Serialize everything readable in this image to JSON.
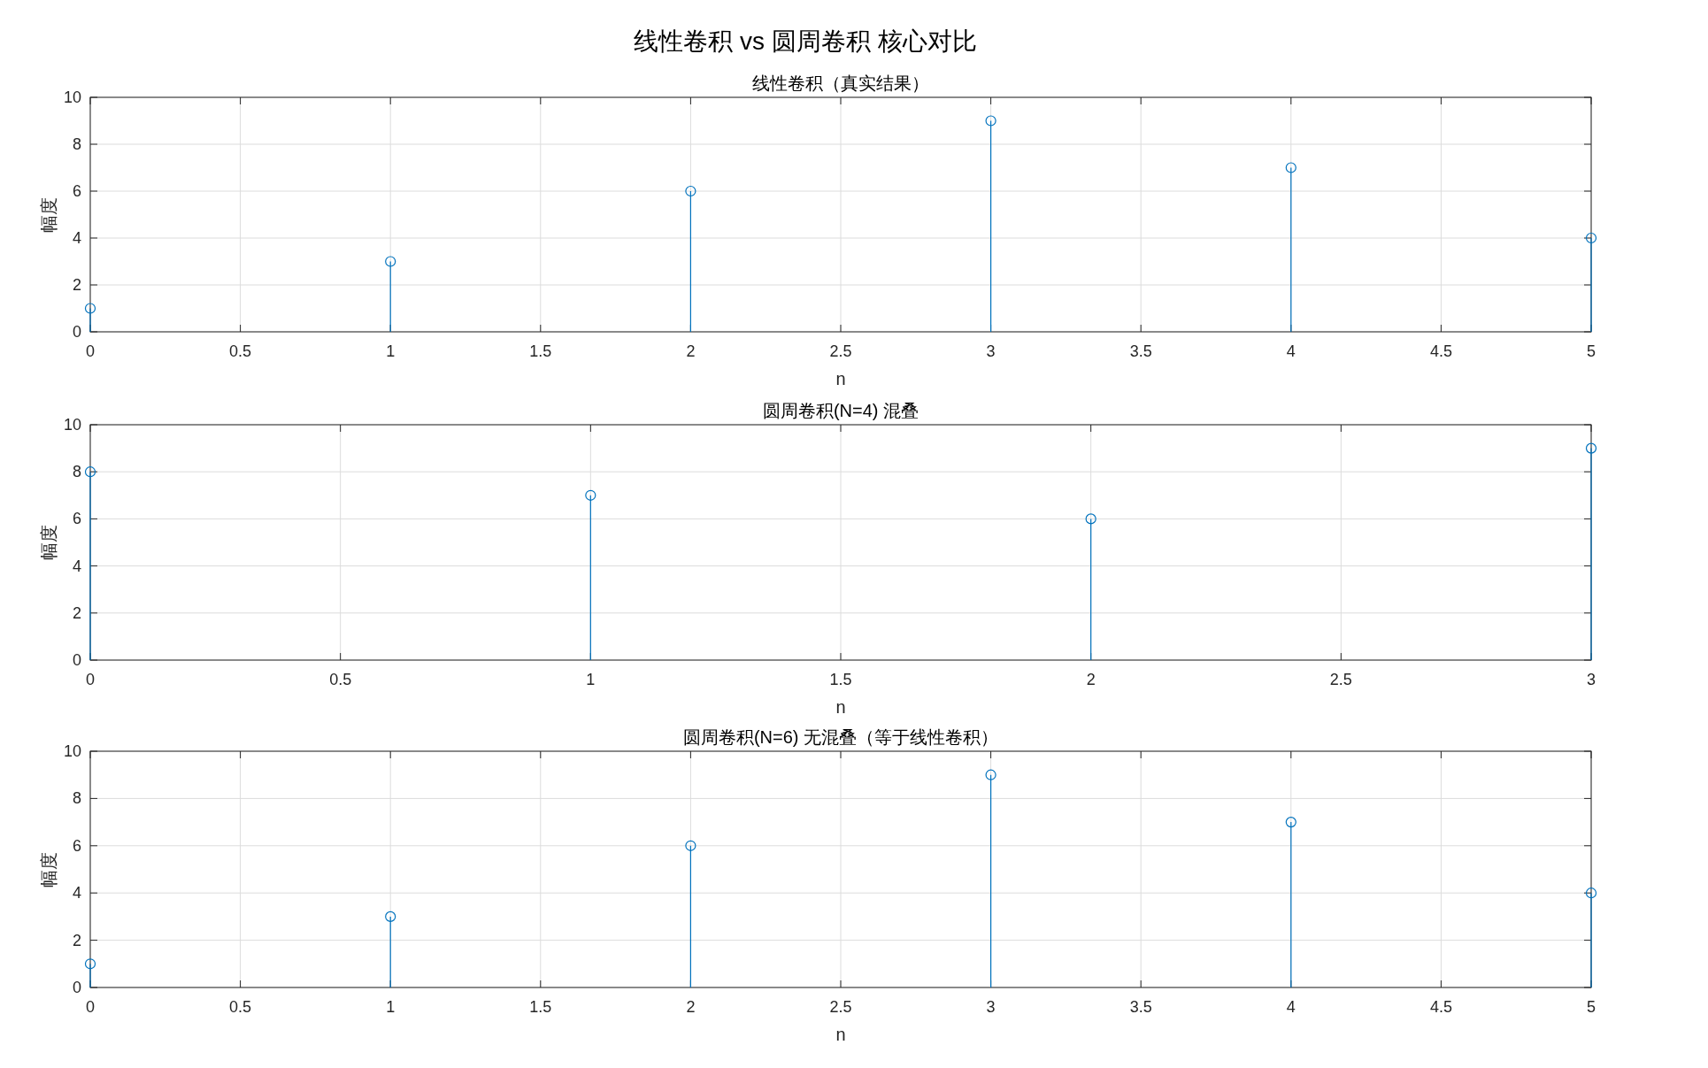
{
  "chart_data": [
    {
      "type": "lollipop",
      "title": "线性卷积（真实结果）",
      "annotations": [
        "线性卷积 vs 圆周卷积 核心对比"
      ],
      "xlabel": "n",
      "ylabel": "幅度",
      "x": [
        0,
        1,
        2,
        3,
        4,
        5
      ],
      "values": [
        1,
        3,
        6,
        9,
        7,
        4
      ],
      "color": "#0072bd",
      "marker": "circle",
      "grid": true,
      "xlim": [
        0,
        5
      ],
      "xticks": [
        0,
        0.5,
        1,
        1.5,
        2,
        2.5,
        3,
        3.5,
        4,
        4.5,
        5
      ],
      "ylim": [
        0,
        10
      ],
      "yticks": [
        0,
        2,
        4,
        6,
        8,
        10
      ]
    },
    {
      "type": "lollipop",
      "title": "圆周卷积(N=4) 混叠",
      "xlabel": "n",
      "ylabel": "幅度",
      "x": [
        0,
        1,
        2,
        3
      ],
      "values": [
        8,
        7,
        6,
        9
      ],
      "color": "#0072bd",
      "marker": "circle",
      "grid": true,
      "xlim": [
        0,
        3
      ],
      "xticks": [
        0,
        0.5,
        1,
        1.5,
        2,
        2.5,
        3
      ],
      "ylim": [
        0,
        10
      ],
      "yticks": [
        0,
        2,
        4,
        6,
        8,
        10
      ]
    },
    {
      "type": "lollipop",
      "title": "圆周卷积(N=6) 无混叠（等于线性卷积）",
      "xlabel": "n",
      "ylabel": "幅度",
      "x": [
        0,
        1,
        2,
        3,
        4,
        5
      ],
      "values": [
        1,
        3,
        6,
        9,
        7,
        4
      ],
      "color": "#0072bd",
      "marker": "circle",
      "grid": true,
      "xlim": [
        0,
        5
      ],
      "xticks": [
        0,
        0.5,
        1,
        1.5,
        2,
        2.5,
        3,
        3.5,
        4,
        4.5,
        5
      ],
      "ylim": [
        0,
        10
      ],
      "yticks": [
        0,
        2,
        4,
        6,
        8,
        10
      ]
    }
  ]
}
